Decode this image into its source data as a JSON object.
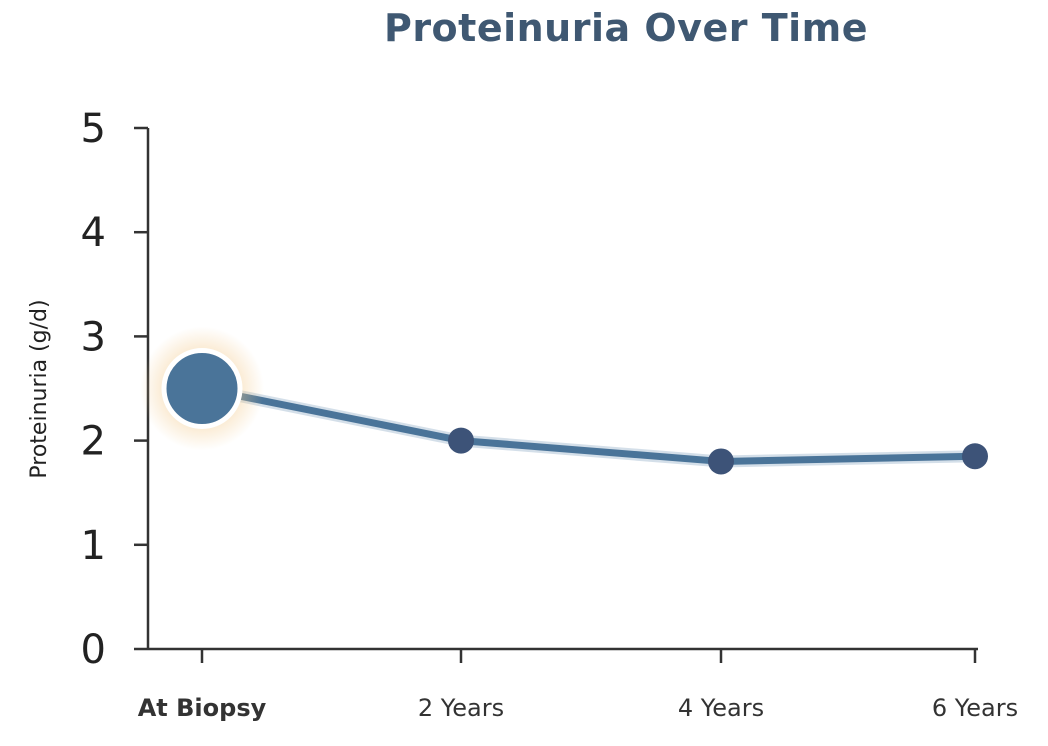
{
  "chart_data": {
    "type": "line",
    "title": "Proteinuria Over Time",
    "xlabel": "",
    "ylabel": "Proteinuria (g/d)",
    "categories": [
      "At Biopsy",
      "2 Years",
      "4 Years",
      "6 Years"
    ],
    "ylim": [
      0,
      5
    ],
    "yticks": [
      0,
      1,
      2,
      3,
      4,
      5
    ],
    "series": [
      {
        "values": [
          2.5,
          2.0,
          1.8,
          1.85
        ]
      }
    ],
    "highlight_index": 0,
    "grid": false,
    "colors": {
      "title": "#3f5872",
      "line": "#4a7499",
      "marker": "#3d5378",
      "highlight_marker": "#4a7499",
      "highlight_label": "#3f5f8a",
      "glow": "#f3c98a",
      "axis": "#333333"
    }
  }
}
